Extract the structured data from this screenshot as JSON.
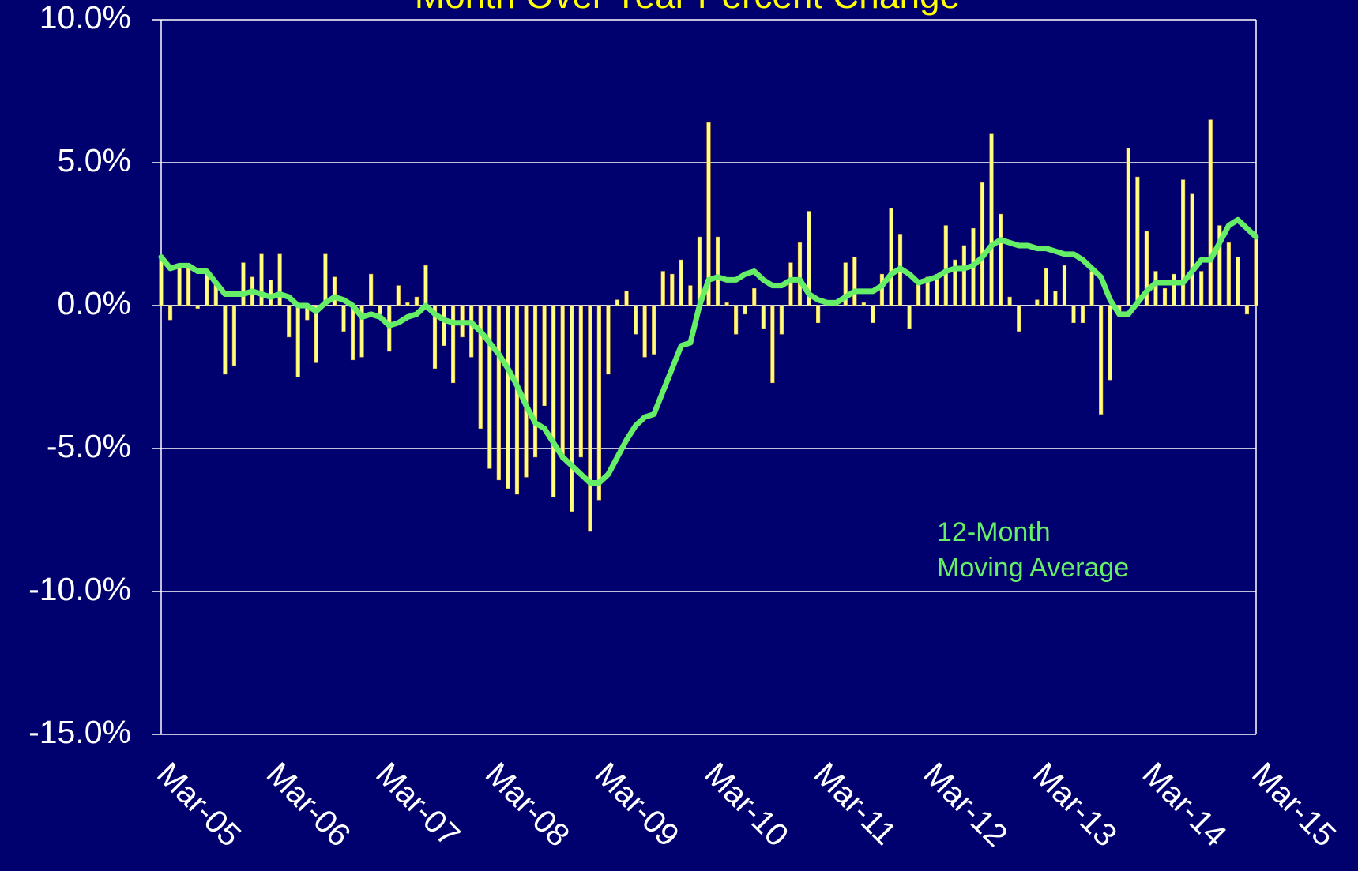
{
  "chart_data": {
    "type": "bar-line",
    "title": "Month Over Year Percent Change",
    "annotation": [
      "12-Month",
      "Moving Average"
    ],
    "categories": [
      "Mar-05",
      null,
      null,
      null,
      null,
      null,
      null,
      null,
      null,
      null,
      null,
      null,
      "Mar-06",
      null,
      null,
      null,
      null,
      null,
      null,
      null,
      null,
      null,
      null,
      null,
      "Mar-07",
      null,
      null,
      null,
      null,
      null,
      null,
      null,
      null,
      null,
      null,
      null,
      "Mar-08",
      null,
      null,
      null,
      null,
      null,
      null,
      null,
      null,
      null,
      null,
      null,
      "Mar-09",
      null,
      null,
      null,
      null,
      null,
      null,
      null,
      null,
      null,
      null,
      null,
      "Mar-10",
      null,
      null,
      null,
      null,
      null,
      null,
      null,
      null,
      null,
      null,
      null,
      "Mar-11",
      null,
      null,
      null,
      null,
      null,
      null,
      null,
      null,
      null,
      null,
      null,
      "Mar-12",
      null,
      null,
      null,
      null,
      null,
      null,
      null,
      null,
      null,
      null,
      null,
      "Mar-13",
      null,
      null,
      null,
      null,
      null,
      null,
      null,
      null,
      null,
      null,
      null,
      "Mar-14",
      null,
      null,
      null,
      null,
      null,
      null,
      null,
      null,
      null,
      null,
      null,
      "Mar-15"
    ],
    "series": [
      {
        "type": "bar",
        "color": "#ffff80",
        "values": [
          1.7,
          -0.5,
          1.3,
          1.3,
          -0.1,
          1.2,
          0.8,
          -2.4,
          -2.1,
          1.5,
          1.0,
          1.8,
          0.9,
          1.8,
          -1.1,
          -2.5,
          -0.5,
          -2.0,
          1.8,
          1.0,
          -0.9,
          -1.9,
          -1.8,
          1.1,
          -0.3,
          -1.6,
          0.7,
          0.1,
          0.3,
          1.4,
          -2.2,
          -1.4,
          -2.7,
          -1.1,
          -1.8,
          -4.3,
          -5.7,
          -6.1,
          -6.4,
          -6.6,
          -6.0,
          -5.3,
          -3.5,
          -6.7,
          -5.4,
          -7.2,
          -5.3,
          -7.9,
          -6.8,
          -2.4,
          0.2,
          0.5,
          -1.0,
          -1.8,
          -1.7,
          1.2,
          1.1,
          1.6,
          0.7,
          2.4,
          6.4,
          2.4,
          0.1,
          -1.0,
          -0.3,
          0.6,
          -0.8,
          -2.7,
          -1.0,
          1.5,
          2.2,
          3.3,
          -0.6,
          0.1,
          0.1,
          1.5,
          1.7,
          0.1,
          -0.6,
          1.1,
          3.4,
          2.5,
          -0.8,
          0.8,
          1.0,
          1.1,
          2.8,
          1.6,
          2.1,
          2.7,
          4.3,
          6.0,
          3.2,
          0.3,
          -0.9,
          0.0,
          0.2,
          1.3,
          0.5,
          1.4,
          -0.6,
          -0.6,
          1.2,
          -3.8,
          -2.6,
          -0.3,
          5.5,
          4.5,
          2.6,
          1.2,
          0.6,
          1.1,
          4.4,
          3.9,
          1.2,
          6.5,
          2.8,
          2.2,
          1.7,
          -0.3,
          2.5
        ]
      },
      {
        "type": "line",
        "color": "#66ee66",
        "values": [
          1.7,
          1.3,
          1.4,
          1.4,
          1.2,
          1.2,
          0.8,
          0.4,
          0.4,
          0.4,
          0.5,
          0.4,
          0.3,
          0.4,
          0.3,
          0.0,
          0.0,
          -0.2,
          0.1,
          0.3,
          0.2,
          0.0,
          -0.4,
          -0.3,
          -0.4,
          -0.7,
          -0.6,
          -0.4,
          -0.3,
          0.0,
          -0.3,
          -0.5,
          -0.6,
          -0.6,
          -0.6,
          -0.9,
          -1.3,
          -1.7,
          -2.2,
          -2.8,
          -3.5,
          -4.1,
          -4.3,
          -4.8,
          -5.3,
          -5.6,
          -5.9,
          -6.2,
          -6.2,
          -5.9,
          -5.3,
          -4.7,
          -4.2,
          -3.9,
          -3.8,
          -3.0,
          -2.2,
          -1.4,
          -1.3,
          0.0,
          0.9,
          1.0,
          0.9,
          0.9,
          1.1,
          1.2,
          0.9,
          0.7,
          0.7,
          0.9,
          0.9,
          0.4,
          0.2,
          0.1,
          0.1,
          0.3,
          0.5,
          0.5,
          0.5,
          0.7,
          1.1,
          1.3,
          1.1,
          0.8,
          0.9,
          1.0,
          1.2,
          1.3,
          1.3,
          1.4,
          1.7,
          2.1,
          2.3,
          2.2,
          2.1,
          2.1,
          2.0,
          2.0,
          1.9,
          1.8,
          1.8,
          1.6,
          1.3,
          1.0,
          0.2,
          -0.3,
          -0.3,
          0.1,
          0.5,
          0.8,
          0.8,
          0.8,
          0.8,
          1.2,
          1.6,
          1.6,
          2.2,
          2.8,
          3.0,
          2.7,
          2.4
        ]
      }
    ],
    "ylim": [
      -15,
      10
    ],
    "yticks": [
      {
        "value": -15,
        "label": "-15.0%"
      },
      {
        "value": -10,
        "label": "-10.0%"
      },
      {
        "value": -5,
        "label": "-5.0%"
      },
      {
        "value": 0,
        "label": "0.0%"
      },
      {
        "value": 5,
        "label": "5.0%"
      },
      {
        "value": 10,
        "label": "10.0%"
      }
    ],
    "grid": true
  }
}
